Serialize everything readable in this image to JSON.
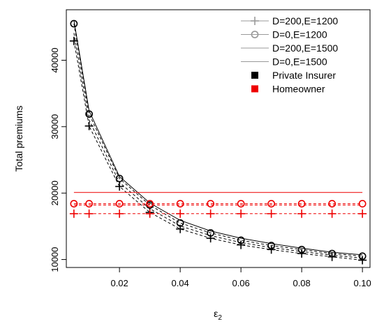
{
  "chart_data": {
    "type": "line",
    "title": "",
    "xlabel": "ε2",
    "ylabel": "Total premiums",
    "xlim": [
      0.0025,
      0.1025
    ],
    "ylim": [
      8800,
      47600
    ],
    "x_ticks": [
      "0.02",
      "0.04",
      "0.06",
      "0.08",
      "0.10"
    ],
    "y_ticks": [
      "10000",
      "20000",
      "30000",
      "40000"
    ],
    "grid": false,
    "legend_position": "top-right",
    "legend": [
      {
        "label": "D=200,E=1200",
        "marker": "plus",
        "color": "#999999"
      },
      {
        "label": "D=0,E=1200",
        "marker": "circle",
        "color": "#999999"
      },
      {
        "label": "D=200,E=1500",
        "marker": "line",
        "color": "#999999"
      },
      {
        "label": "D=0,E=1500",
        "marker": "line",
        "color": "#999999"
      },
      {
        "label": "Private Insurer",
        "marker": "square",
        "color": "#000000"
      },
      {
        "label": "Homeowner",
        "marker": "square",
        "color": "#ee0000"
      }
    ],
    "x": [
      0.005,
      0.01,
      0.02,
      0.03,
      0.04,
      0.05,
      0.06,
      0.07,
      0.08,
      0.09,
      0.1
    ],
    "series": [
      {
        "group": "Private Insurer",
        "marker": "plus",
        "dash": "4,3",
        "color": "#000000",
        "values": [
          42900,
          30100,
          21000,
          17100,
          14600,
          13200,
          12200,
          11500,
          10900,
          10400,
          9900
        ]
      },
      {
        "group": "Private Insurer",
        "marker": "circle",
        "dash": "4,3",
        "color": "#000000",
        "values": [
          45500,
          31900,
          22200,
          18200,
          15500,
          14000,
          12900,
          12100,
          11500,
          10900,
          10500
        ]
      },
      {
        "group": "Private Insurer",
        "marker": "none",
        "dash": "4,3",
        "color": "#000000",
        "values": [
          44100,
          31000,
          21600,
          17650,
          15050,
          13600,
          12550,
          11800,
          11200,
          10650,
          10200
        ]
      },
      {
        "group": "Private Insurer",
        "marker": "none",
        "dash": "",
        "color": "#000000",
        "values": [
          46000,
          32400,
          22500,
          18500,
          15900,
          14300,
          13200,
          12400,
          11700,
          11100,
          10700
        ]
      },
      {
        "group": "Homeowner",
        "marker": "plus",
        "dash": "4,3",
        "color": "#ee0000",
        "values": [
          16900,
          16900,
          16900,
          16900,
          16900,
          16900,
          16900,
          16900,
          16900,
          16900,
          16900
        ]
      },
      {
        "group": "Homeowner",
        "marker": "circle",
        "dash": "4,3",
        "color": "#ee0000",
        "values": [
          18400,
          18400,
          18400,
          18400,
          18400,
          18400,
          18400,
          18400,
          18400,
          18400,
          18400
        ]
      },
      {
        "group": "Homeowner",
        "marker": "none",
        "dash": "4,3",
        "color": "#ee0000",
        "values": [
          18200,
          18200,
          18200,
          18200,
          18200,
          18200,
          18200,
          18200,
          18200,
          18200,
          18200
        ]
      },
      {
        "group": "Homeowner",
        "marker": "none",
        "dash": "",
        "color": "#ee0000",
        "values": [
          20100,
          20100,
          20100,
          20100,
          20100,
          20100,
          20100,
          20100,
          20100,
          20100,
          20100
        ]
      }
    ]
  }
}
